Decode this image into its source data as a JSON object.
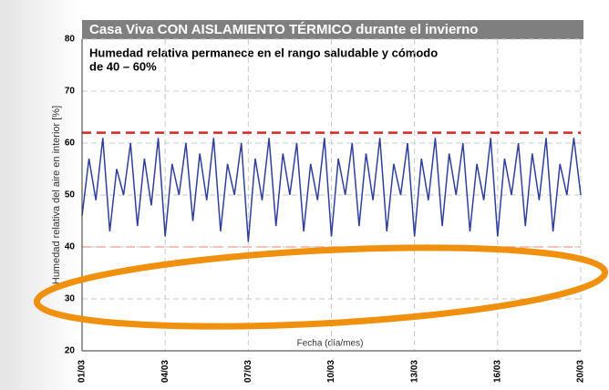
{
  "chart_data": {
    "type": "line",
    "title": "Casa Viva CON AISLAMIENTO TÉRMICO durante el invierno",
    "subtitle": [
      "Humedad relativa permanece en el rango saludable y cómodo",
      "de 40 – 60%"
    ],
    "y_label": "Humedad relativa del aire en interior [%]",
    "x_label": "Fecha (día/mes)",
    "categories": [
      "01/03",
      null,
      null,
      null,
      null,
      null,
      null,
      null,
      null,
      null,
      null,
      null,
      "04/03",
      null,
      null,
      null,
      null,
      null,
      null,
      null,
      null,
      null,
      null,
      null,
      "07/03",
      null,
      null,
      null,
      null,
      null,
      null,
      null,
      null,
      null,
      null,
      null,
      "10/03",
      null,
      null,
      null,
      null,
      null,
      null,
      null,
      null,
      null,
      null,
      null,
      "13/03",
      null,
      null,
      null,
      null,
      null,
      null,
      null,
      null,
      null,
      null,
      null,
      "16/03",
      null,
      null,
      null,
      null,
      null,
      null,
      null,
      null,
      null,
      null,
      null,
      "20/03"
    ],
    "series": [
      {
        "name": "Humedad relativa",
        "color": "#2f3f9a",
        "values": [
          46,
          57,
          49,
          61,
          43,
          55,
          50,
          60,
          44,
          57,
          48,
          61,
          42,
          56,
          50,
          60,
          45,
          58,
          49,
          61,
          43,
          56,
          50,
          60,
          41,
          57,
          49,
          61,
          44,
          58,
          50,
          60,
          43,
          56,
          49,
          61,
          42,
          57,
          50,
          60,
          44,
          58,
          49,
          61,
          43,
          56,
          50,
          60,
          42,
          57,
          49,
          61,
          44,
          58,
          50,
          60,
          43,
          56,
          49,
          61,
          42,
          57,
          50,
          60,
          44,
          58,
          49,
          61,
          43,
          56,
          50,
          61,
          50
        ]
      }
    ],
    "reference_lines": [
      {
        "value": 62,
        "color": "#d62728"
      },
      {
        "value": 40,
        "color": "#f2aaaa"
      }
    ],
    "ylim": [
      20,
      80
    ],
    "yticks": [
      20,
      30,
      40,
      50,
      60,
      70,
      80
    ],
    "grid": true
  }
}
